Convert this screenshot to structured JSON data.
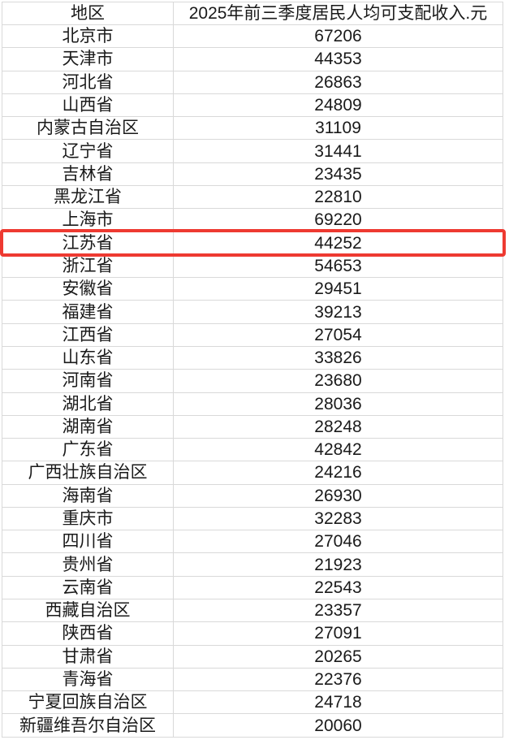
{
  "table": {
    "headers": {
      "region": "地区",
      "income": "2025年前三季度居民人均可支配收入.元"
    },
    "rows": [
      {
        "region": "北京市",
        "income": "67206"
      },
      {
        "region": "天津市",
        "income": "44353"
      },
      {
        "region": "河北省",
        "income": "26863"
      },
      {
        "region": "山西省",
        "income": "24809"
      },
      {
        "region": "内蒙古自治区",
        "income": "31109"
      },
      {
        "region": "辽宁省",
        "income": "31441"
      },
      {
        "region": "吉林省",
        "income": "23435"
      },
      {
        "region": "黑龙江省",
        "income": "22810"
      },
      {
        "region": "上海市",
        "income": "69220"
      },
      {
        "region": "江苏省",
        "income": "44252"
      },
      {
        "region": "浙江省",
        "income": "54653"
      },
      {
        "region": "安徽省",
        "income": "29451"
      },
      {
        "region": "福建省",
        "income": "39213"
      },
      {
        "region": "江西省",
        "income": "27054"
      },
      {
        "region": "山东省",
        "income": "33826"
      },
      {
        "region": "河南省",
        "income": "23680"
      },
      {
        "region": "湖北省",
        "income": "28036"
      },
      {
        "region": "湖南省",
        "income": "28248"
      },
      {
        "region": "广东省",
        "income": "42842"
      },
      {
        "region": "广西壮族自治区",
        "income": "24216"
      },
      {
        "region": "海南省",
        "income": "26930"
      },
      {
        "region": "重庆市",
        "income": "32283"
      },
      {
        "region": "四川省",
        "income": "27046"
      },
      {
        "region": "贵州省",
        "income": "21923"
      },
      {
        "region": "云南省",
        "income": "22543"
      },
      {
        "region": "西藏自治区",
        "income": "23357"
      },
      {
        "region": "陕西省",
        "income": "27091"
      },
      {
        "region": "甘肃省",
        "income": "20265"
      },
      {
        "region": "青海省",
        "income": "22376"
      },
      {
        "region": "宁夏回族自治区",
        "income": "24718"
      },
      {
        "region": "新疆维吾尔自治区",
        "income": "20060"
      }
    ]
  },
  "highlight": {
    "region": "江苏省",
    "row_index": 9,
    "border_color": "#ee3a31"
  },
  "colors": {
    "grid_line": "#d9d9d9",
    "text": "#1a1a1a",
    "background": "#ffffff"
  }
}
